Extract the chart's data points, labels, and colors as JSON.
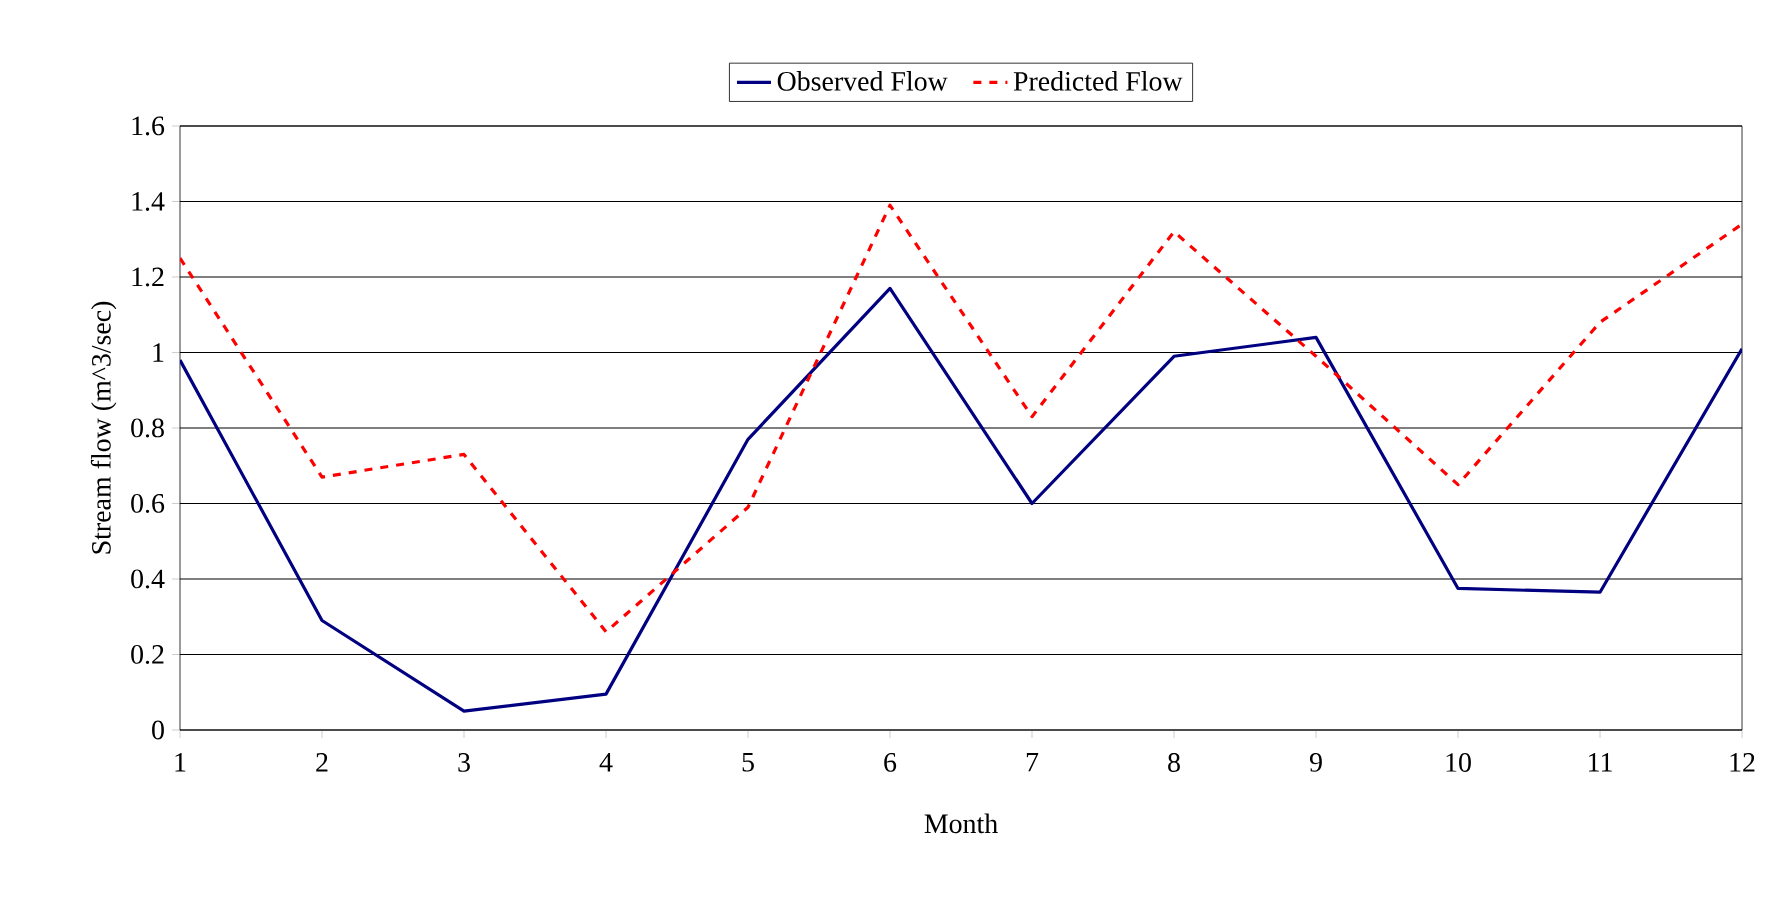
{
  "chart_data": {
    "type": "line",
    "xlabel": "Month",
    "ylabel": "Stream flow (m^3/sec)",
    "x": [
      1,
      2,
      3,
      4,
      5,
      6,
      7,
      8,
      9,
      10,
      11,
      12
    ],
    "series": [
      {
        "name": "Observed Flow",
        "color": "#000080",
        "line_style": "solid",
        "values": [
          0.98,
          0.29,
          0.05,
          0.095,
          0.77,
          1.17,
          0.6,
          0.99,
          1.04,
          0.375,
          0.365,
          1.01
        ]
      },
      {
        "name": "Predicted Flow",
        "color": "#ff0000",
        "line_style": "dashed",
        "values": [
          1.25,
          0.67,
          0.73,
          0.26,
          0.59,
          1.39,
          0.83,
          1.32,
          0.99,
          0.65,
          1.08,
          1.34
        ]
      }
    ],
    "xlim": [
      1,
      12
    ],
    "xticks": [
      1,
      2,
      3,
      4,
      5,
      6,
      7,
      8,
      9,
      10,
      11,
      12
    ],
    "ylim": [
      0,
      1.6
    ],
    "yticks": [
      0,
      0.2,
      0.4,
      0.6,
      0.8,
      1,
      1.2,
      1.4,
      1.6
    ],
    "grid": "y",
    "legend": "top",
    "marker": "none"
  }
}
